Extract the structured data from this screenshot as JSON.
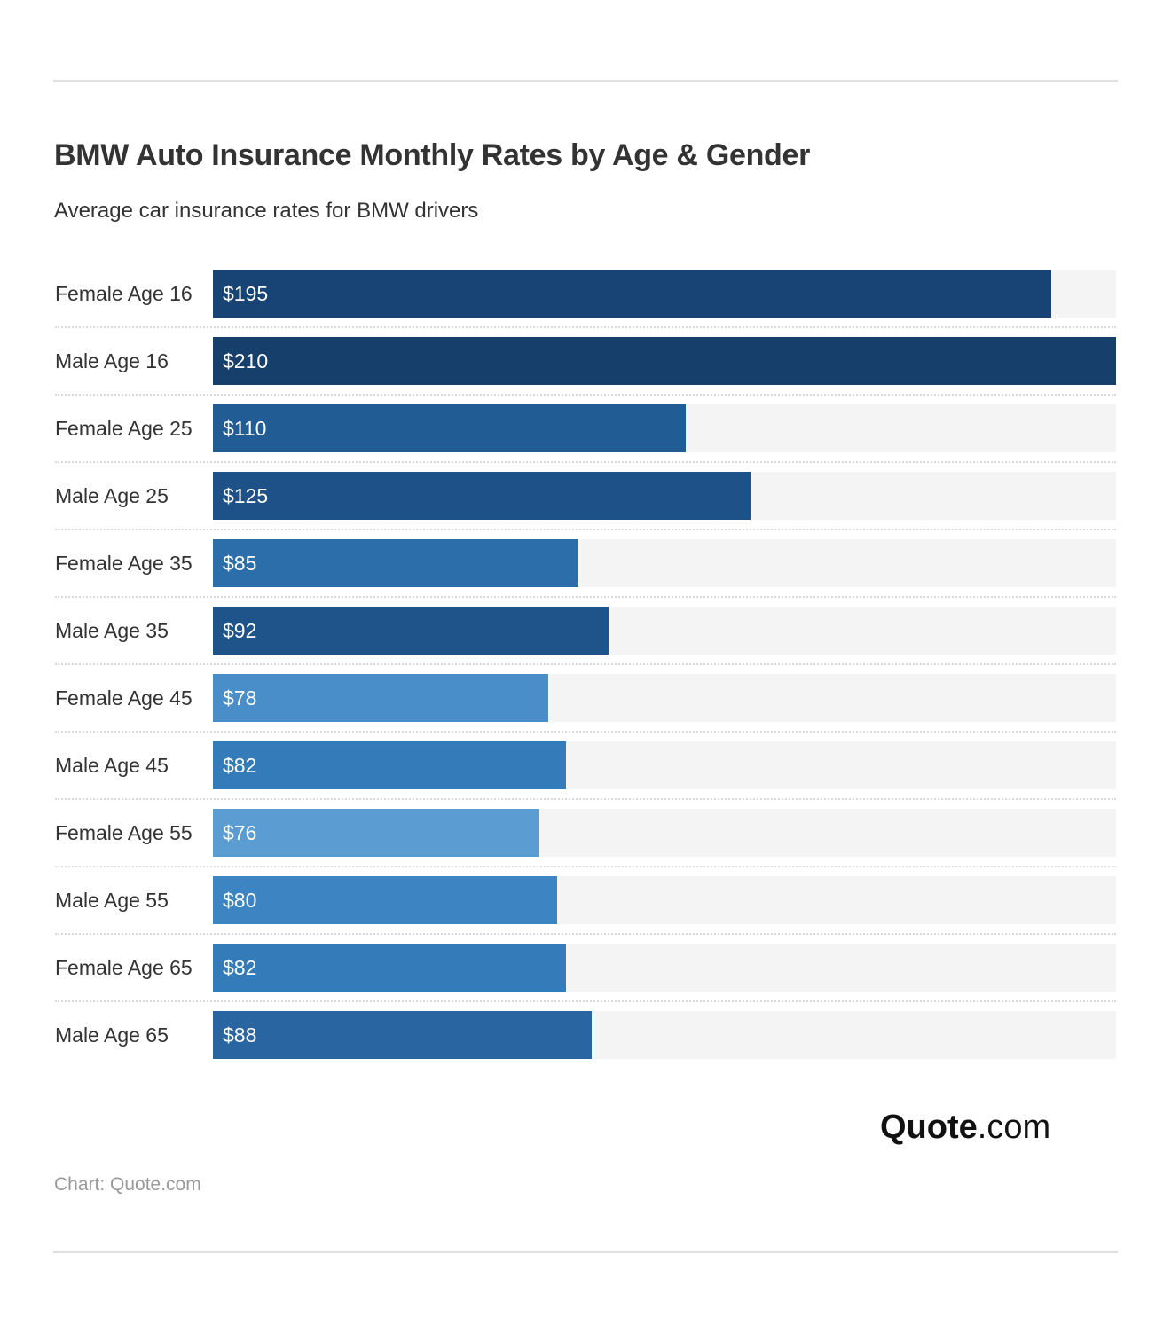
{
  "chart_data": {
    "type": "bar",
    "orientation": "horizontal",
    "title": "BMW Auto Insurance Monthly Rates by Age & Gender",
    "subtitle": "Average car insurance rates for BMW drivers",
    "categories": [
      "Female Age 16",
      "Male Age 16",
      "Female Age 25",
      "Male Age 25",
      "Female Age 35",
      "Male Age 35",
      "Female Age 45",
      "Male Age 45",
      "Female Age 55",
      "Male Age 55",
      "Female Age 65",
      "Male Age 65"
    ],
    "values": [
      195,
      210,
      110,
      125,
      85,
      92,
      78,
      82,
      76,
      80,
      82,
      88
    ],
    "value_labels": [
      "$195",
      "$210",
      "$110",
      "$125",
      "$85",
      "$92",
      "$78",
      "$82",
      "$76",
      "$80",
      "$82",
      "$88"
    ],
    "colors": [
      "#174474",
      "#163f6c",
      "#225c94",
      "#1f5189",
      "#2c6ea9",
      "#1e548a",
      "#4a8ec9",
      "#337bb9",
      "#5b9dd2",
      "#3d84c2",
      "#337bb9",
      "#2966a1"
    ],
    "xlim": [
      0,
      210
    ],
    "grid": false
  },
  "logo": {
    "bold": "Quote",
    "rest": ".com"
  },
  "source": "Chart: Quote.com"
}
